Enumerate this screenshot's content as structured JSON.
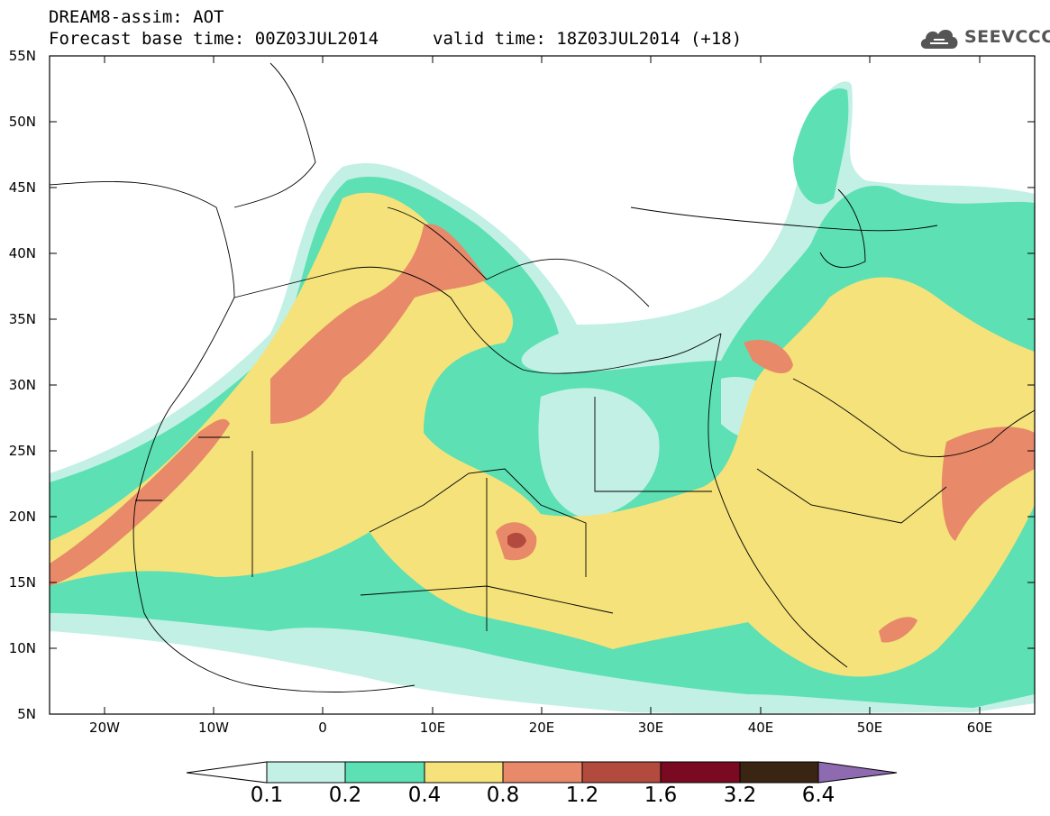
{
  "header": {
    "title": "DREAM8-assim: AOT",
    "base_time": "Forecast base time: 00Z03JUL2014",
    "valid_time": "valid time: 18Z03JUL2014 (+18)"
  },
  "logo": {
    "text": "SEEVCCC",
    "icon": "cloud-icon"
  },
  "map": {
    "lat_labels": [
      "55N",
      "50N",
      "45N",
      "40N",
      "35N",
      "30N",
      "25N",
      "20N",
      "15N",
      "10N",
      "5N"
    ],
    "lon_labels": [
      "20W",
      "10W",
      "0",
      "10E",
      "20E",
      "30E",
      "40E",
      "50E",
      "60E"
    ],
    "lat_range": [
      5,
      55
    ],
    "lon_range": [
      -25,
      65
    ]
  },
  "colorbar": {
    "levels": [
      "0.1",
      "0.2",
      "0.4",
      "0.8",
      "1.2",
      "1.6",
      "3.2",
      "6.4"
    ],
    "colors": [
      "#ffffff",
      "#c2f0e4",
      "#5ce0b4",
      "#f5e27a",
      "#e8896a",
      "#b24a3e",
      "#7a0a22",
      "#3a2412",
      "#8e6bb0"
    ]
  }
}
